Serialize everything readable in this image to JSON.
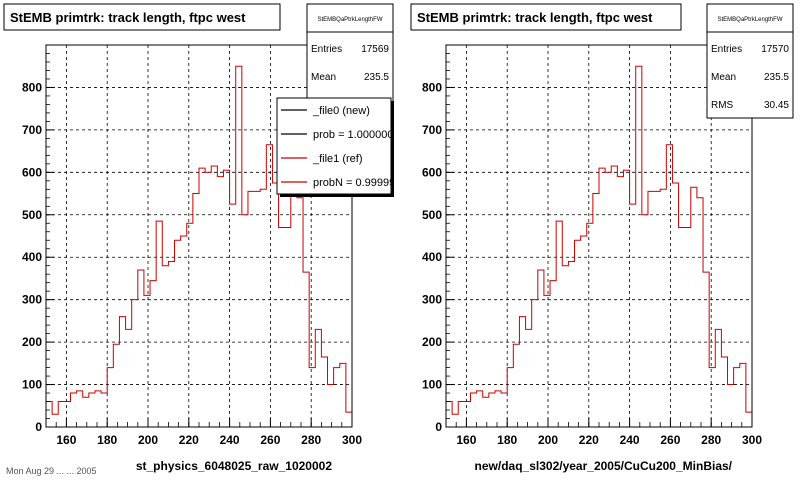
{
  "footer": "Mon Aug 29 ... ... 2005",
  "colors": {
    "ref": "#cc0000",
    "new": "#000000",
    "grid": "#000000",
    "bg": "#ffffff"
  },
  "chart_data": [
    {
      "type": "bar",
      "title": "StEMB primtrk: track length, ftpc west",
      "xlabel": "st_physics_6048025_raw_1020002",
      "ylabel": "",
      "xlim": [
        150,
        300
      ],
      "ylim": [
        0,
        900
      ],
      "xticks": [
        160,
        180,
        200,
        220,
        240,
        260,
        280,
        300
      ],
      "yticks": [
        0,
        100,
        200,
        300,
        400,
        500,
        600,
        700,
        800
      ],
      "grid": true,
      "bin_width": 3,
      "stats": {
        "name": "StEMBQaPtrkLengthFW",
        "rows": [
          {
            "label": "Entries",
            "value": "17569"
          },
          {
            "label": "Mean",
            "value": "235.5"
          }
        ]
      },
      "legend": {
        "position": "top-right",
        "entries": [
          "_file0 (new)",
          "prob = 1.000000",
          "_file1 (ref)",
          "probN = 0.99999"
        ]
      },
      "series": [
        {
          "name": "_file1 (ref)",
          "x": [
            150,
            153,
            156,
            159,
            162,
            165,
            168,
            171,
            174,
            177,
            180,
            183,
            186,
            189,
            192,
            195,
            198,
            201,
            204,
            207,
            210,
            213,
            216,
            219,
            222,
            225,
            228,
            231,
            234,
            237,
            240,
            243,
            246,
            249,
            252,
            255,
            258,
            261,
            264,
            267,
            270,
            273,
            276,
            279,
            282,
            285,
            288,
            291,
            294,
            297
          ],
          "values": [
            60,
            30,
            60,
            60,
            80,
            85,
            70,
            80,
            85,
            80,
            140,
            195,
            260,
            230,
            300,
            370,
            310,
            345,
            485,
            380,
            390,
            440,
            450,
            480,
            550,
            610,
            600,
            615,
            590,
            605,
            525,
            850,
            500,
            555,
            555,
            560,
            665,
            575,
            470,
            470,
            565,
            540,
            365,
            140,
            230,
            165,
            100,
            140,
            150,
            35
          ]
        }
      ]
    },
    {
      "type": "bar",
      "title": "StEMB primtrk: track length, ftpc west",
      "xlabel": "new/daq_sl302/year_2005/CuCu200_MinBias/",
      "ylabel": "",
      "xlim": [
        150,
        300
      ],
      "ylim": [
        0,
        900
      ],
      "xticks": [
        160,
        180,
        200,
        220,
        240,
        260,
        280,
        300
      ],
      "yticks": [
        0,
        100,
        200,
        300,
        400,
        500,
        600,
        700,
        800
      ],
      "grid": true,
      "bin_width": 3,
      "stats": {
        "name": "StEMBQaPtrkLengthFW",
        "rows": [
          {
            "label": "Entries",
            "value": "17570"
          },
          {
            "label": "Mean",
            "value": "235.5"
          },
          {
            "label": "RMS",
            "value": "30.45"
          }
        ]
      },
      "series": [
        {
          "name": "",
          "x": [
            150,
            153,
            156,
            159,
            162,
            165,
            168,
            171,
            174,
            177,
            180,
            183,
            186,
            189,
            192,
            195,
            198,
            201,
            204,
            207,
            210,
            213,
            216,
            219,
            222,
            225,
            228,
            231,
            234,
            237,
            240,
            243,
            246,
            249,
            252,
            255,
            258,
            261,
            264,
            267,
            270,
            273,
            276,
            279,
            282,
            285,
            288,
            291,
            294,
            297
          ],
          "values": [
            60,
            30,
            60,
            60,
            80,
            85,
            70,
            80,
            85,
            80,
            140,
            195,
            260,
            230,
            300,
            370,
            310,
            345,
            485,
            380,
            390,
            440,
            450,
            480,
            550,
            610,
            600,
            615,
            590,
            605,
            525,
            850,
            500,
            555,
            555,
            560,
            665,
            575,
            470,
            470,
            565,
            540,
            365,
            140,
            230,
            165,
            100,
            140,
            150,
            35
          ]
        }
      ]
    }
  ]
}
